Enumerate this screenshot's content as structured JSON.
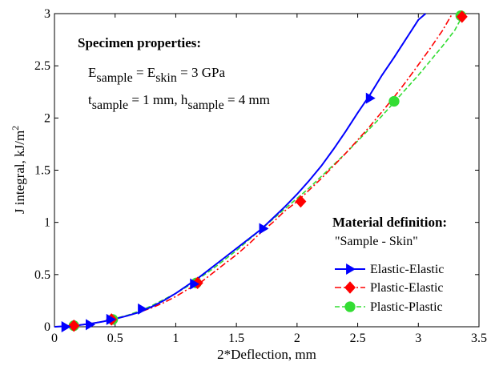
{
  "chart_data": {
    "type": "line",
    "xlabel": "2*Deflection, mm",
    "ylabel_main": "J integral, kJ/m",
    "ylabel_sup": "2",
    "xlim": [
      0,
      3.5
    ],
    "ylim": [
      0,
      3
    ],
    "xticks": [
      "0",
      "0.5",
      "1",
      "1.5",
      "2",
      "2.5",
      "3",
      "3.5"
    ],
    "xtick_values": [
      0,
      0.5,
      1,
      1.5,
      2,
      2.5,
      3,
      3.5
    ],
    "yticks": [
      "0",
      "0.5",
      "1",
      "1.5",
      "2",
      "2.5",
      "3"
    ],
    "ytick_values": [
      0,
      0.5,
      1,
      1.5,
      2,
      2.5,
      3
    ],
    "grid": false,
    "legend_position": "bottom-right",
    "legend_title": "Material definition:",
    "legend_subtitle": "\"Sample - Skin\"",
    "series": [
      {
        "name": "Elastic-Elastic",
        "color": "#0000ff",
        "line_style": "solid",
        "marker": "triangle-right",
        "curve_x": [
          0,
          0.1,
          0.2,
          0.3,
          0.4,
          0.5,
          0.6,
          0.7,
          0.8,
          0.9,
          1.0,
          1.1,
          1.2,
          1.3,
          1.4,
          1.5,
          1.6,
          1.7,
          1.8,
          1.9,
          2.0,
          2.1,
          2.2,
          2.3,
          2.4,
          2.5,
          2.6,
          2.7,
          2.8,
          2.9,
          3.0,
          3.06
        ],
        "curve_y": [
          0,
          0.005,
          0.015,
          0.03,
          0.05,
          0.075,
          0.105,
          0.14,
          0.19,
          0.25,
          0.32,
          0.4,
          0.48,
          0.57,
          0.66,
          0.75,
          0.84,
          0.93,
          1.04,
          1.15,
          1.27,
          1.4,
          1.54,
          1.7,
          1.87,
          2.05,
          2.22,
          2.41,
          2.58,
          2.76,
          2.94,
          3.0
        ],
        "markers_x": [
          0.09,
          0.29,
          0.46,
          0.72,
          1.15,
          1.72,
          2.6
        ],
        "markers_y": [
          0.0,
          0.02,
          0.07,
          0.17,
          0.41,
          0.94,
          2.19
        ]
      },
      {
        "name": "Plastic-Elastic",
        "color": "#ff0000",
        "line_style": "dashdot",
        "marker": "diamond",
        "curve_x": [
          0,
          0.1,
          0.2,
          0.3,
          0.4,
          0.5,
          0.6,
          0.7,
          0.8,
          0.9,
          1.0,
          1.1,
          1.2,
          1.3,
          1.4,
          1.5,
          1.6,
          1.7,
          1.8,
          1.9,
          2.0,
          2.1,
          2.2,
          2.3,
          2.4,
          2.5,
          2.6,
          2.7,
          2.8,
          2.9,
          3.0,
          3.1,
          3.2,
          3.28
        ],
        "curve_y": [
          0,
          0.005,
          0.015,
          0.03,
          0.05,
          0.075,
          0.105,
          0.14,
          0.18,
          0.23,
          0.29,
          0.36,
          0.42,
          0.51,
          0.6,
          0.69,
          0.79,
          0.9,
          1.0,
          1.11,
          1.2,
          1.31,
          1.42,
          1.54,
          1.66,
          1.79,
          1.92,
          2.06,
          2.2,
          2.35,
          2.51,
          2.67,
          2.84,
          3.0
        ],
        "markers_x": [
          0.16,
          0.47,
          1.18,
          2.03,
          3.36
        ],
        "markers_y": [
          0.01,
          0.07,
          0.42,
          1.2,
          2.97
        ]
      },
      {
        "name": "Plastic-Plastic",
        "color": "#33dd33",
        "line_style": "dashed",
        "marker": "circle",
        "curve_x": [
          0,
          0.1,
          0.2,
          0.3,
          0.4,
          0.5,
          0.6,
          0.7,
          0.8,
          0.9,
          1.0,
          1.1,
          1.2,
          1.3,
          1.4,
          1.5,
          1.6,
          1.7,
          1.8,
          1.9,
          2.0,
          2.1,
          2.2,
          2.3,
          2.4,
          2.5,
          2.6,
          2.7,
          2.8,
          2.9,
          3.0,
          3.1,
          3.2,
          3.3,
          3.36
        ],
        "curve_y": [
          0,
          0.005,
          0.015,
          0.03,
          0.05,
          0.08,
          0.11,
          0.15,
          0.2,
          0.26,
          0.32,
          0.39,
          0.47,
          0.55,
          0.64,
          0.73,
          0.83,
          0.93,
          1.03,
          1.13,
          1.23,
          1.33,
          1.44,
          1.55,
          1.66,
          1.78,
          1.9,
          2.02,
          2.15,
          2.28,
          2.41,
          2.55,
          2.69,
          2.84,
          2.97
        ],
        "markers_x": [
          0.16,
          0.48,
          1.17,
          2.8,
          3.35
        ],
        "markers_y": [
          0.01,
          0.07,
          0.42,
          2.16,
          2.98
        ]
      }
    ]
  },
  "annotation": {
    "title": "Specimen properties:",
    "line1": {
      "e1": "E",
      "s1": "sample",
      "eq1": " = E",
      "s2": "skin",
      "rest": " = 3 GPa"
    },
    "line2": {
      "t": "t",
      "s1": "sample",
      "mid": " = 1 mm, h",
      "s2": "sample",
      "rest": " = 4 mm"
    }
  }
}
